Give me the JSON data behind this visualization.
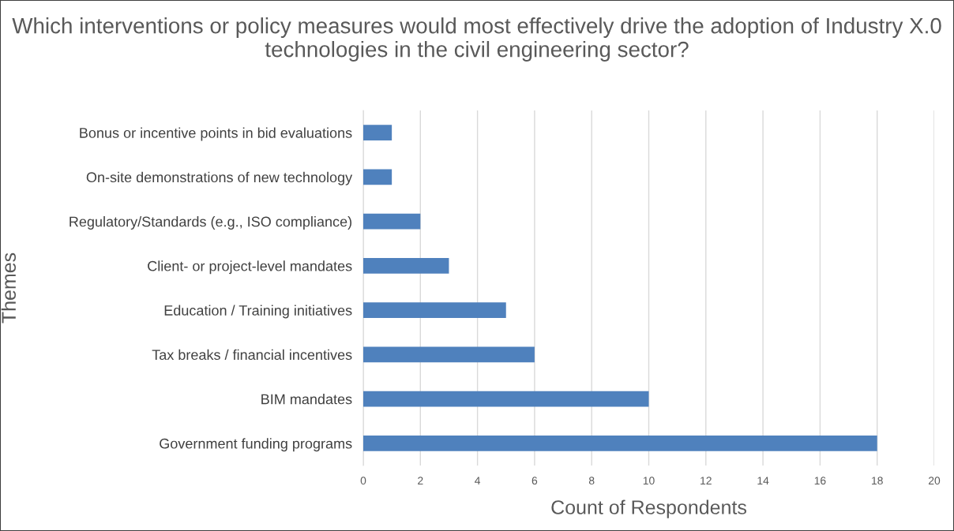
{
  "chart_data": {
    "type": "bar",
    "orientation": "horizontal",
    "title": "Which interventions or policy measures would most effectively drive the adoption of Industry X.0 technologies in the civil engineering sector?",
    "xlabel": "Count of Respondents",
    "ylabel": "Themes",
    "categories": [
      "Bonus or incentive points in bid evaluations",
      "On-site demonstrations of new technology",
      "Regulatory/Standards (e.g., ISO compliance)",
      "Client- or project-level mandates",
      "Education / Training initiatives",
      "Tax breaks / financial incentives",
      "BIM mandates",
      "Government funding programs"
    ],
    "values": [
      1,
      1,
      2,
      3,
      5,
      6,
      10,
      18
    ],
    "color": "#4f81bd",
    "xlim": [
      0,
      20
    ],
    "xticks": [
      0,
      2,
      4,
      6,
      8,
      10,
      12,
      14,
      16,
      18,
      20
    ],
    "grid": "x",
    "legend": false
  }
}
